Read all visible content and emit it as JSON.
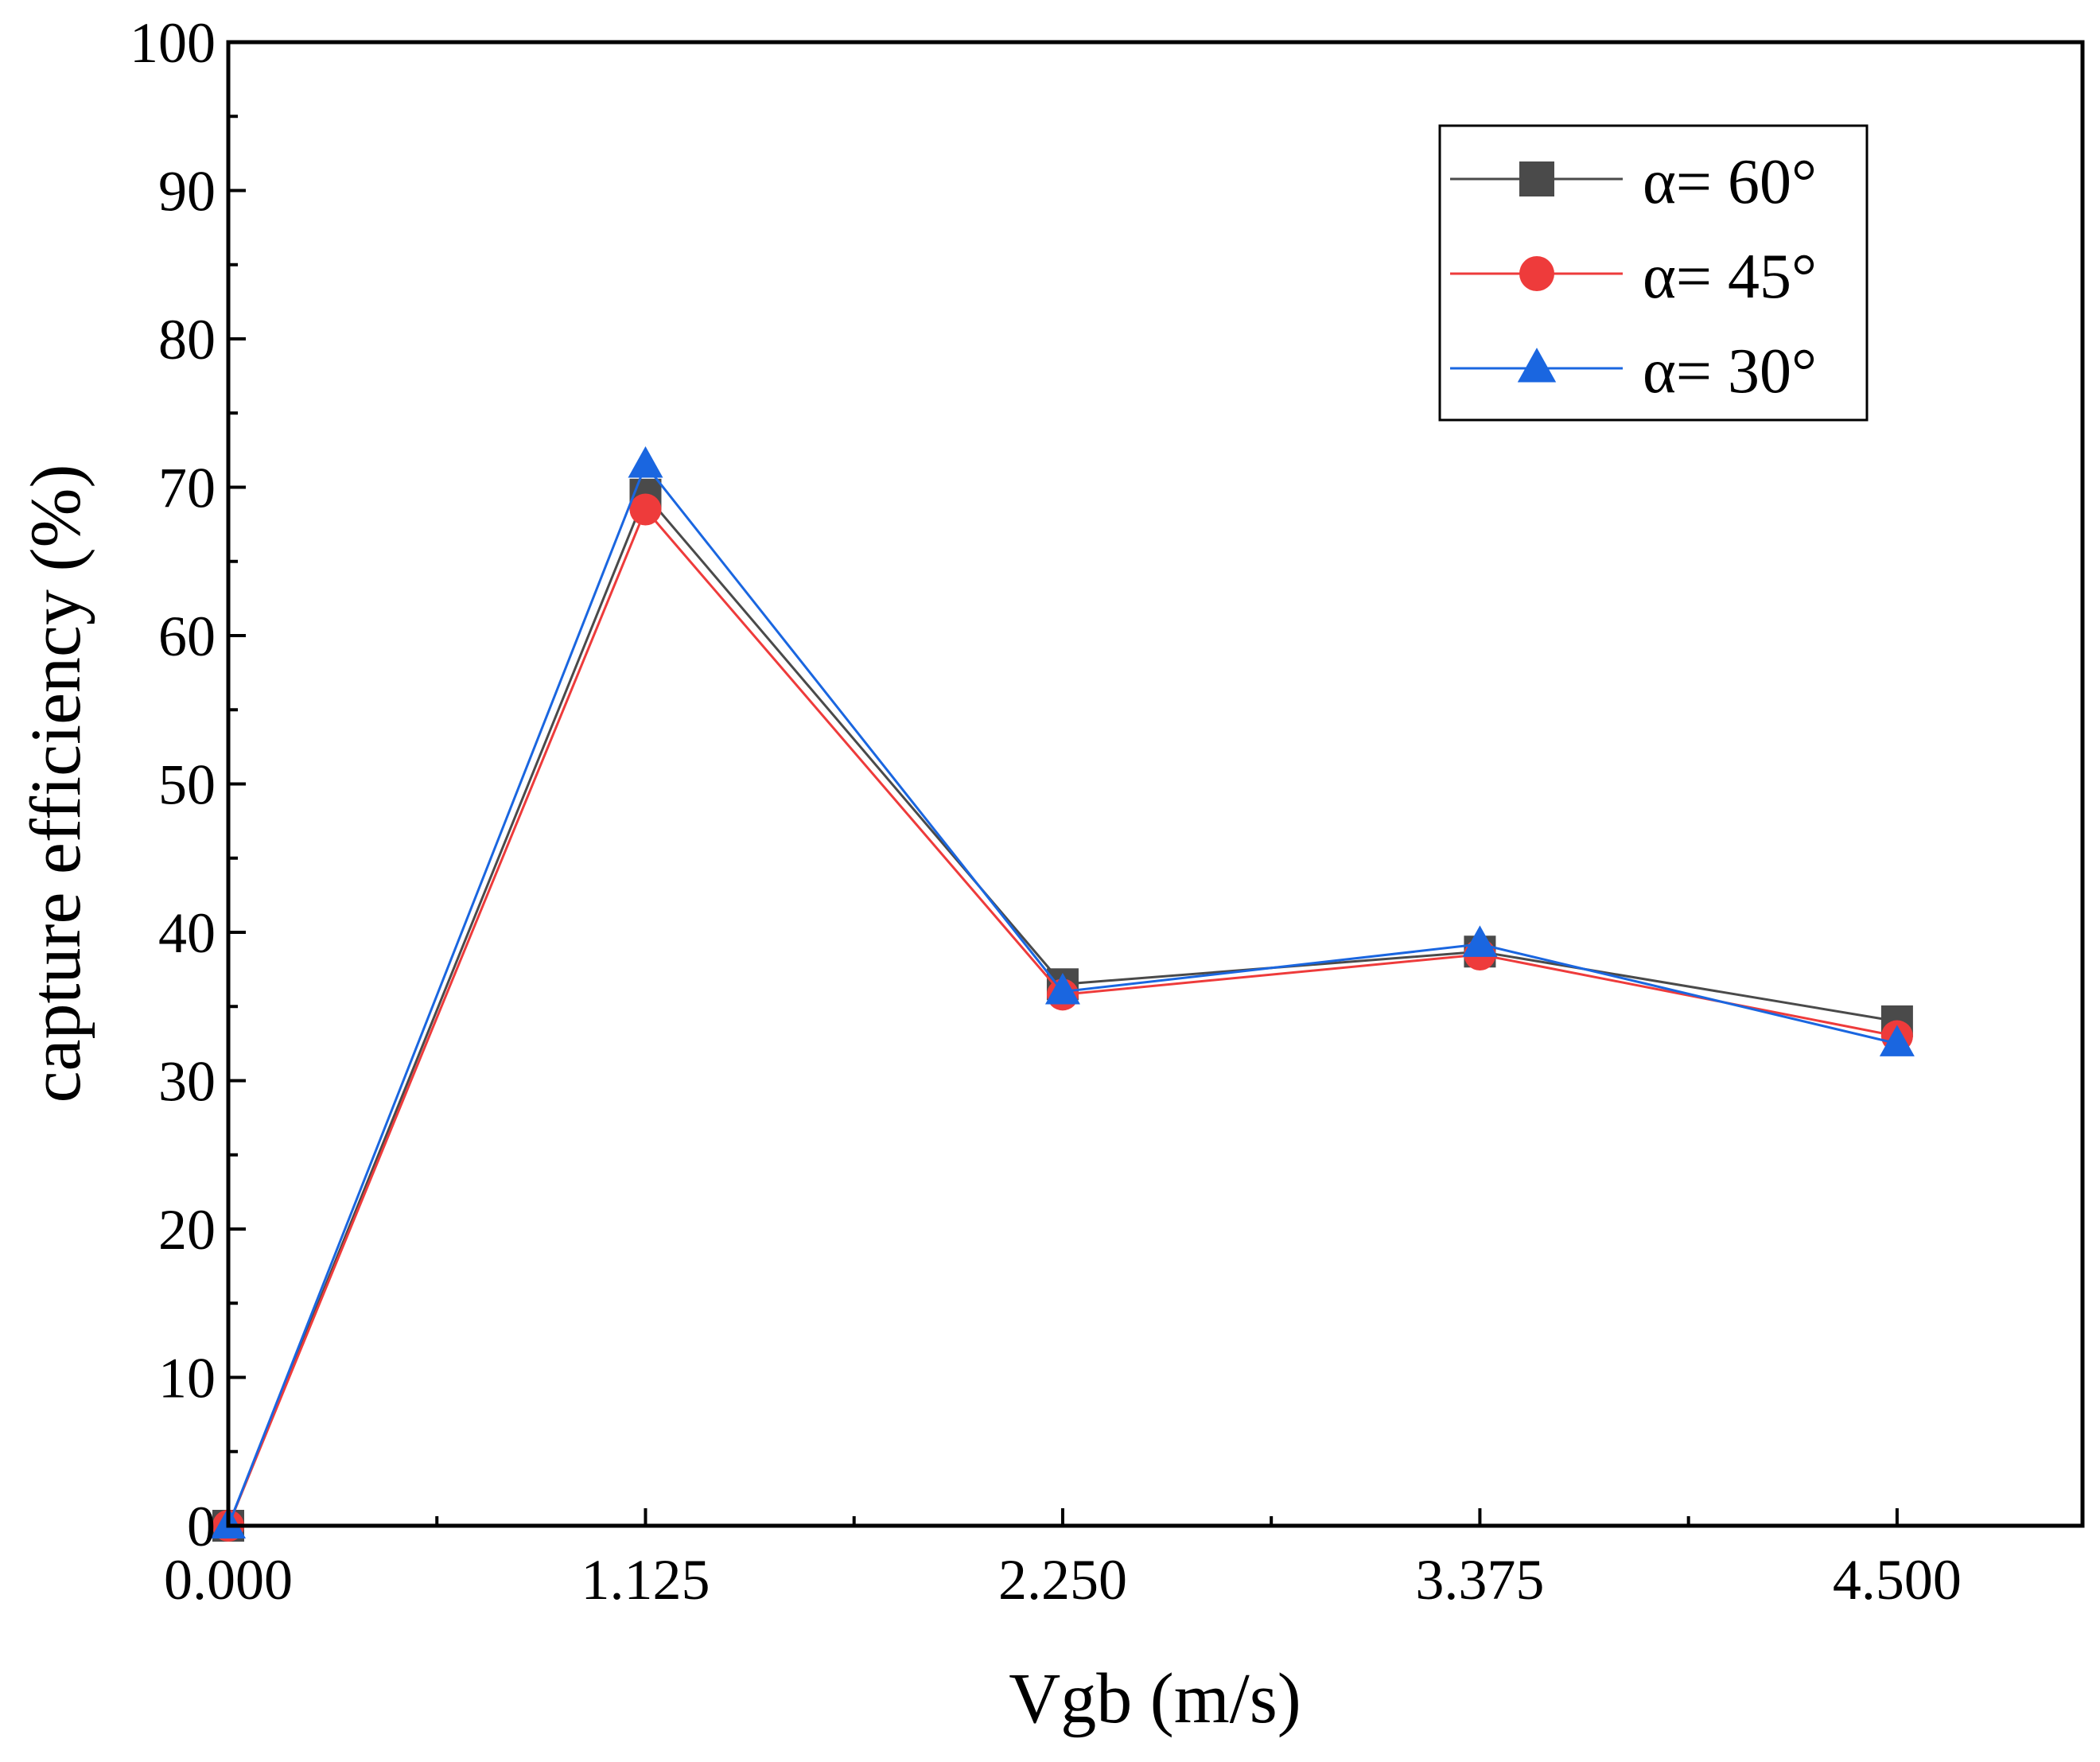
{
  "chart_data": {
    "type": "line",
    "title": "",
    "xlabel": "Vgb (m/s)",
    "ylabel": "capture efficiency (%)",
    "x": [
      0.0,
      1.125,
      2.25,
      3.375,
      4.5
    ],
    "x_tick_labels": [
      "0.000",
      "1.125",
      "2.250",
      "3.375",
      "4.500"
    ],
    "y_tick_labels": [
      "0",
      "10",
      "20",
      "30",
      "40",
      "50",
      "60",
      "70",
      "80",
      "90",
      "100"
    ],
    "xlim": [
      0.0,
      5.0
    ],
    "ylim": [
      0,
      100
    ],
    "grid": false,
    "legend_position": "top-right",
    "series": [
      {
        "name": "α= 60°",
        "marker": "square",
        "color": "#4a4a4a",
        "values": [
          0,
          69.5,
          36.5,
          38.7,
          34.0
        ]
      },
      {
        "name": "α= 45°",
        "marker": "circle",
        "color": "#ee3b3b",
        "values": [
          0,
          68.5,
          35.8,
          38.5,
          33.0
        ]
      },
      {
        "name": "α= 30°",
        "marker": "triangle",
        "color": "#1a66e0",
        "values": [
          0,
          71.5,
          36.0,
          39.2,
          32.5
        ]
      }
    ]
  }
}
